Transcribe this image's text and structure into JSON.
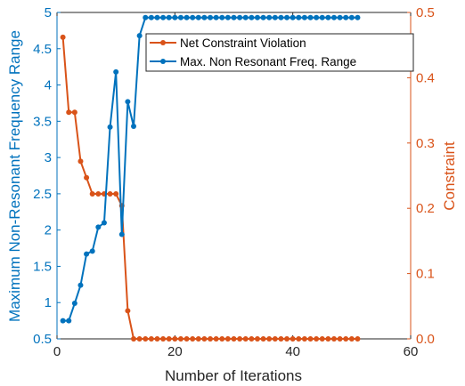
{
  "chart_data": {
    "type": "line",
    "title": "",
    "xlabel": "Number of Iterations",
    "ylabel_left": "Maximum Non-Resonant Frequency Range",
    "ylabel_right": "Constraint",
    "xlim": [
      0,
      60
    ],
    "ylim_left": [
      0.5,
      5
    ],
    "ylim_right": [
      0,
      0.5
    ],
    "x_ticks": [
      0,
      20,
      40,
      60
    ],
    "y_left_ticks": [
      0.5,
      1,
      1.5,
      2,
      2.5,
      3,
      3.5,
      4,
      4.5,
      5
    ],
    "y_left_tick_labels": [
      "0.5",
      "1",
      "1.5",
      "2",
      "2.5",
      "3",
      "3.5",
      "4",
      "4.5",
      "5"
    ],
    "y_right_ticks": [
      0,
      0.1,
      0.2,
      0.3,
      0.4,
      0.5
    ],
    "y_right_tick_labels": [
      "0.0",
      "0.1",
      "0.2",
      "0.3",
      "0.4",
      "0.5"
    ],
    "grid": false,
    "legend_position": "top-right",
    "series": [
      {
        "name": "Net Constraint Violation",
        "axis": "right",
        "color": "#D95319",
        "x": [
          1,
          2,
          3,
          4,
          5,
          6,
          7,
          8,
          9,
          10,
          11,
          12,
          13,
          14,
          15,
          16,
          17,
          18,
          19,
          20,
          21,
          22,
          23,
          24,
          25,
          26,
          27,
          28,
          29,
          30,
          31,
          32,
          33,
          34,
          35,
          36,
          37,
          38,
          39,
          40,
          41,
          42,
          43,
          44,
          45,
          46,
          47,
          48,
          49,
          50,
          51
        ],
        "y": [
          0.462,
          0.347,
          0.347,
          0.272,
          0.247,
          0.222,
          0.222,
          0.222,
          0.222,
          0.222,
          0.204,
          0.043,
          0,
          0,
          0,
          0,
          0,
          0,
          0,
          0,
          0,
          0,
          0,
          0,
          0,
          0,
          0,
          0,
          0,
          0,
          0,
          0,
          0,
          0,
          0,
          0,
          0,
          0,
          0,
          0,
          0,
          0,
          0,
          0,
          0,
          0,
          0,
          0,
          0,
          0,
          0
        ]
      },
      {
        "name": "Max. Non Resonant Freq. Range",
        "axis": "left",
        "color": "#0072BD",
        "x": [
          1,
          2,
          3,
          4,
          5,
          6,
          7,
          8,
          9,
          10,
          11,
          12,
          13,
          14,
          15,
          16,
          17,
          18,
          19,
          20,
          21,
          22,
          23,
          24,
          25,
          26,
          27,
          28,
          29,
          30,
          31,
          32,
          33,
          34,
          35,
          36,
          37,
          38,
          39,
          40,
          41,
          42,
          43,
          44,
          45,
          46,
          47,
          48,
          49,
          50,
          51
        ],
        "y": [
          0.75,
          0.75,
          0.99,
          1.24,
          1.67,
          1.71,
          2.04,
          2.1,
          3.42,
          4.18,
          1.94,
          3.77,
          3.43,
          4.68,
          4.93,
          4.93,
          4.93,
          4.93,
          4.93,
          4.93,
          4.93,
          4.93,
          4.93,
          4.93,
          4.93,
          4.93,
          4.93,
          4.93,
          4.93,
          4.93,
          4.93,
          4.93,
          4.93,
          4.93,
          4.93,
          4.93,
          4.93,
          4.93,
          4.93,
          4.93,
          4.93,
          4.93,
          4.93,
          4.93,
          4.93,
          4.93,
          4.93,
          4.93,
          4.93,
          4.93,
          4.93
        ]
      }
    ]
  }
}
